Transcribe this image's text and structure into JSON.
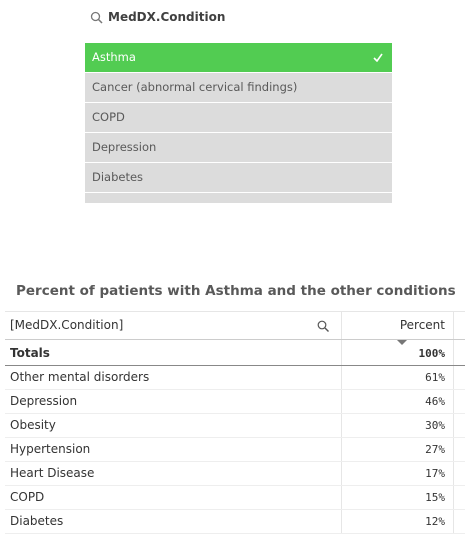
{
  "filter_pane": {
    "title": "MedDX.Condition",
    "items": [
      {
        "label": "Asthma",
        "selected": true
      },
      {
        "label": "Cancer (abnormal cervical findings)",
        "selected": false
      },
      {
        "label": "COPD",
        "selected": false
      },
      {
        "label": "Depression",
        "selected": false
      },
      {
        "label": "Diabetes",
        "selected": false
      }
    ]
  },
  "table": {
    "title": "Percent of patients with Asthma and the other conditions",
    "header": [
      "[MedDX.Condition]",
      "Percent"
    ],
    "totals": [
      "Totals",
      "100%"
    ],
    "rows": [
      [
        "Other mental disorders",
        "61%"
      ],
      [
        "Depression",
        "46%"
      ],
      [
        "Obesity",
        "30%"
      ],
      [
        "Hypertension",
        "27%"
      ],
      [
        "Heart Disease",
        "17%"
      ],
      [
        "COPD",
        "15%"
      ],
      [
        "Diabetes",
        "12%"
      ]
    ]
  }
}
